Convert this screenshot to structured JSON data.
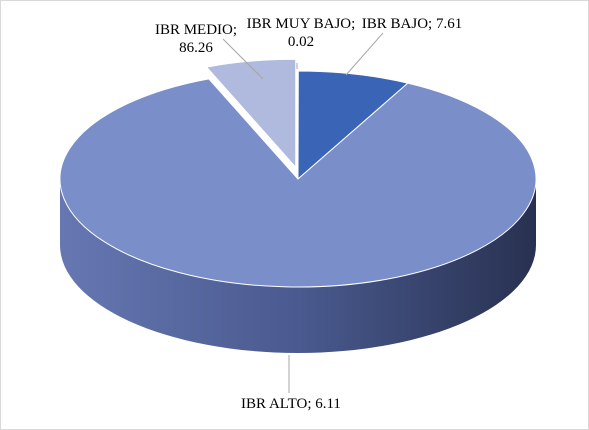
{
  "chart_data": {
    "type": "pie3d",
    "values": [
      0.02,
      7.61,
      86.26,
      6.11
    ],
    "value_labels": [
      "IBR MUY BAJO; 0.02",
      "IBR BAJO; 7.61",
      "IBR MEDIO; 86.26",
      "IBR ALTO; 6.11"
    ],
    "colors": [
      "#2f4f9a",
      "#3a64b5",
      "#7a8ec9",
      "#b0b9de"
    ]
  }
}
